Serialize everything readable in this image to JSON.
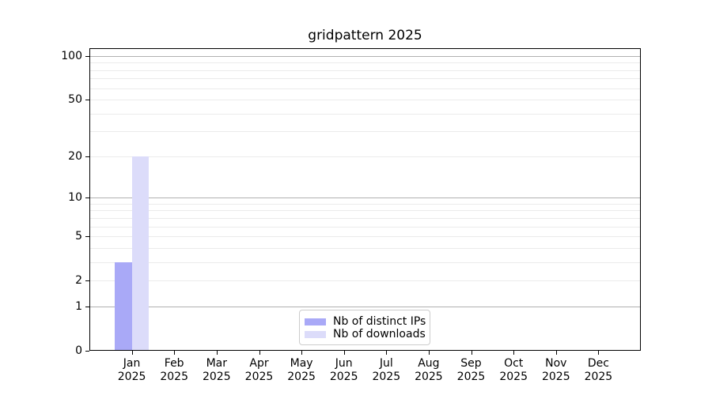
{
  "chart_data": {
    "type": "bar",
    "title": "gridpattern 2025",
    "categories": [
      {
        "label": "Jan",
        "sub": "2025"
      },
      {
        "label": "Feb",
        "sub": "2025"
      },
      {
        "label": "Mar",
        "sub": "2025"
      },
      {
        "label": "Apr",
        "sub": "2025"
      },
      {
        "label": "May",
        "sub": "2025"
      },
      {
        "label": "Jun",
        "sub": "2025"
      },
      {
        "label": "Jul",
        "sub": "2025"
      },
      {
        "label": "Aug",
        "sub": "2025"
      },
      {
        "label": "Sep",
        "sub": "2025"
      },
      {
        "label": "Oct",
        "sub": "2025"
      },
      {
        "label": "Nov",
        "sub": "2025"
      },
      {
        "label": "Dec",
        "sub": "2025"
      }
    ],
    "series": [
      {
        "name": "Nb of distinct IPs",
        "color": "#a9a9f7",
        "values": [
          3,
          0,
          0,
          0,
          0,
          0,
          0,
          0,
          0,
          0,
          0,
          0
        ]
      },
      {
        "name": "Nb of downloads",
        "color": "#dcdcfa",
        "values": [
          20,
          0,
          0,
          0,
          0,
          0,
          0,
          0,
          0,
          0,
          0,
          0
        ]
      }
    ],
    "y_axis": {
      "scale": "log1p",
      "ticks": [
        0,
        1,
        2,
        5,
        10,
        20,
        50,
        100
      ],
      "major_gridlines": [
        1,
        10,
        100
      ],
      "minor_gridlines": [
        2,
        3,
        4,
        5,
        6,
        7,
        8,
        9,
        20,
        30,
        40,
        50,
        60,
        70,
        80,
        90
      ],
      "range_top_value": 113
    },
    "x_axis": {
      "label": "",
      "tick_year": "2025"
    },
    "grid": true,
    "legend": {
      "position": "lower center",
      "border_color": "#cccccc",
      "items": [
        "Nb of distinct IPs",
        "Nb of downloads"
      ]
    }
  },
  "colors": {
    "axis": "#000000",
    "major_grid": "#b0b0b0",
    "minor_grid": "#ebebeb",
    "background": "#ffffff"
  }
}
